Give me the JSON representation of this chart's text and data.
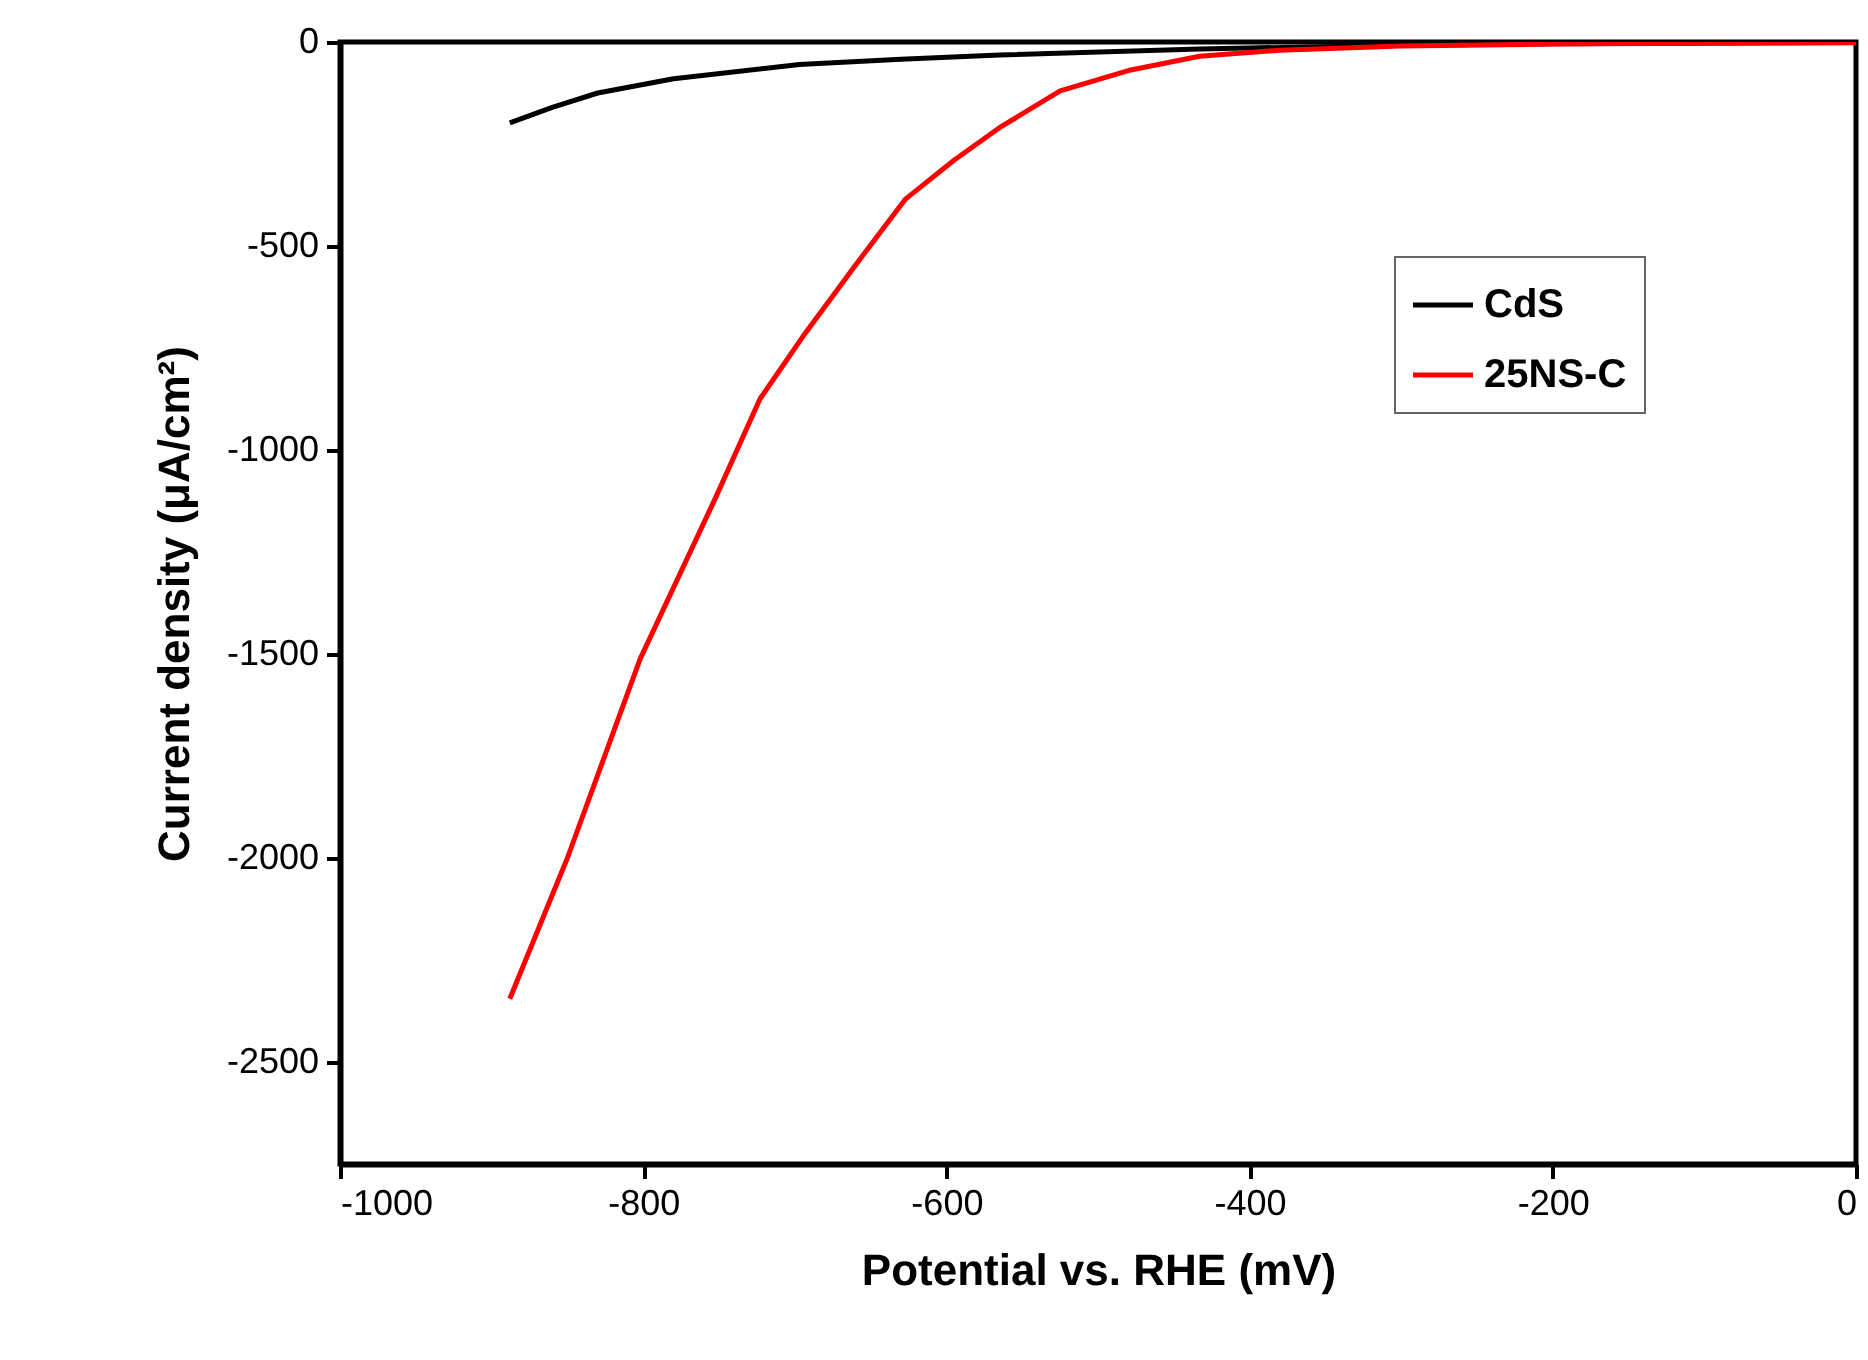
{
  "chart_data": {
    "type": "line",
    "xlabel": "Potential vs. RHE (mV)",
    "ylabel": "Current density (μA/cm²)",
    "xlim": [
      -1000,
      0
    ],
    "xticks": [
      -1000,
      -800,
      -600,
      -400,
      -200,
      0
    ],
    "ylim": [
      -2750,
      0
    ],
    "yticks": [
      -2500,
      -2000,
      -1500,
      -1000,
      -500,
      0
    ],
    "grid": false,
    "legend": "right",
    "marker": "none",
    "line_style": "solid",
    "series": [
      {
        "name": "CdS",
        "color": "#000000",
        "x": [
          -888,
          -860,
          -830,
          -780,
          -697,
          -630,
          -565,
          -433,
          -300,
          -200,
          0
        ],
        "values": [
          -198,
          -160,
          -125,
          -90,
          -55,
          -42,
          -32,
          -17,
          -8,
          -4,
          -1
        ]
      },
      {
        "name": "25NS-C",
        "color": "#ff0000",
        "x": [
          -888,
          -850,
          -802,
          -752,
          -723,
          -693,
          -660,
          -627,
          -595,
          -565,
          -525,
          -480,
          -433,
          -380,
          -300,
          -200,
          -100,
          0
        ],
        "values": [
          -2345,
          -2000,
          -1512,
          -1115,
          -875,
          -713,
          -547,
          -385,
          -290,
          -210,
          -120,
          -70,
          -35,
          -20,
          -10,
          -5,
          -3,
          -2
        ]
      }
    ]
  }
}
